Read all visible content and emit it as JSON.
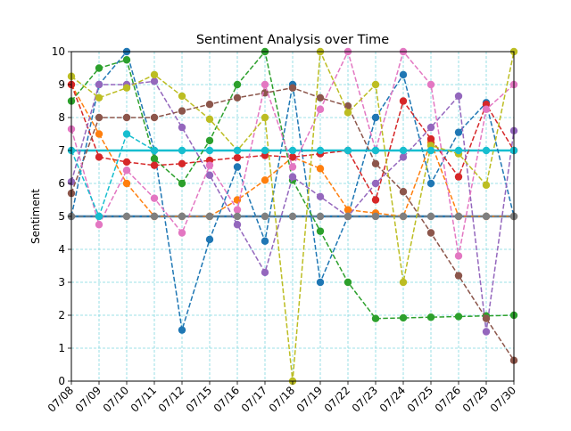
{
  "chart_data": {
    "type": "line",
    "title": "Sentiment Analysis over Time",
    "xlabel": "",
    "ylabel": "Sentiment",
    "ylim": [
      0,
      10
    ],
    "yticks": [
      "0",
      "1",
      "2",
      "3",
      "4",
      "5",
      "6",
      "7",
      "8",
      "9",
      "10"
    ],
    "categories": [
      "07/08",
      "07/09",
      "07/10",
      "07/11",
      "07/12",
      "07/15",
      "07/16",
      "07/17",
      "07/18",
      "07/19",
      "07/22",
      "07/23",
      "07/24",
      "07/25",
      "07/26",
      "07/29",
      "07/30"
    ],
    "grid": true,
    "legend": "none",
    "series": [
      {
        "color": "#1f77b4",
        "values": [
          5.0,
          9.0,
          10.0,
          7.0,
          1.55,
          4.3,
          6.5,
          4.25,
          9.0,
          3.0,
          5.0,
          8.0,
          9.3,
          6.0,
          7.55,
          8.45,
          5.0
        ]
      },
      {
        "color": "#ff7f0e",
        "values": [
          9.0,
          7.5,
          6.0,
          5.0,
          5.0,
          5.0,
          5.5,
          6.1,
          6.8,
          6.45,
          5.2,
          5.1,
          5.0,
          7.25,
          5.0,
          5.0,
          5.0
        ]
      },
      {
        "color": "#2ca02c",
        "values": [
          8.5,
          9.5,
          9.75,
          6.75,
          6.0,
          7.3,
          9.0,
          10.0,
          6.1,
          4.55,
          3.0,
          1.9,
          1.92,
          1.94,
          1.96,
          1.98,
          2.0
        ]
      },
      {
        "color": "#d62728",
        "values": [
          9.0,
          6.8,
          6.65,
          6.55,
          6.6,
          6.7,
          6.78,
          6.85,
          6.8,
          6.9,
          7.0,
          5.5,
          8.5,
          7.35,
          6.2,
          8.4,
          7.0
        ]
      },
      {
        "color": "#9467bd",
        "values": [
          6.05,
          9.0,
          9.0,
          9.1,
          7.7,
          6.25,
          4.75,
          3.3,
          6.2,
          5.6,
          5.0,
          6.0,
          6.8,
          7.7,
          8.65,
          1.5,
          7.6
        ]
      },
      {
        "color": "#8c564b",
        "values": [
          5.7,
          8.0,
          8.0,
          8.0,
          8.2,
          8.4,
          8.6,
          8.75,
          8.9,
          8.6,
          8.35,
          6.6,
          5.75,
          4.5,
          3.2,
          1.9,
          0.63
        ]
      },
      {
        "color": "#e377c2",
        "values": [
          7.65,
          4.75,
          6.4,
          5.55,
          4.5,
          6.55,
          5.2,
          9.0,
          6.5,
          8.25,
          10.0,
          7.0,
          10.0,
          9.0,
          3.8,
          8.25,
          9.0
        ]
      },
      {
        "color": "#7f7f7f",
        "values": [
          5.0,
          5.0,
          5.0,
          5.0,
          5.0,
          5.0,
          5.0,
          5.0,
          5.0,
          5.0,
          5.0,
          5.0,
          5.0,
          5.0,
          5.0,
          5.0,
          5.0
        ]
      },
      {
        "color": "#bcbd22",
        "values": [
          9.25,
          8.6,
          8.9,
          9.3,
          8.65,
          7.95,
          7.0,
          8.0,
          0.0,
          10.0,
          8.15,
          9.0,
          3.0,
          7.15,
          6.9,
          5.95,
          10.0
        ]
      },
      {
        "color": "#17becf",
        "values": [
          7.0,
          5.0,
          7.5,
          7.0,
          7.0,
          7.0,
          7.0,
          7.0,
          7.0,
          7.0,
          7.0,
          7.0,
          7.0,
          7.0,
          7.0,
          7.0,
          7.0
        ]
      }
    ],
    "hlines": [
      {
        "y": 7,
        "color": "#17becf"
      },
      {
        "y": 5,
        "color": "#1f77b4"
      }
    ]
  }
}
